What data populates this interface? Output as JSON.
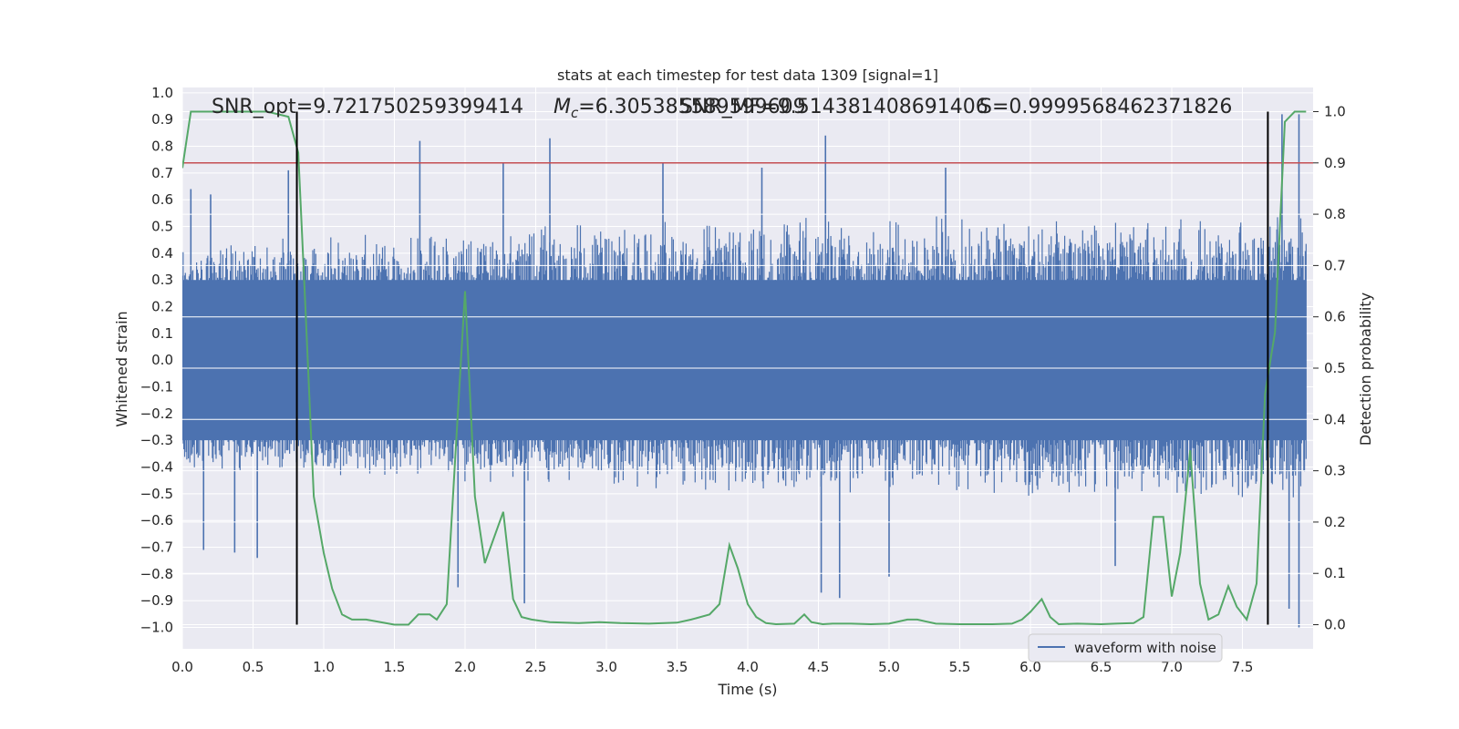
{
  "chart_data": {
    "type": "line",
    "title": "stats at each timestep for test data 1309 [signal=1]",
    "xlabel": "Time (s)",
    "ylabel": "Whitened strain",
    "y2label": "Detection probability",
    "xlim": [
      0.0,
      8.0
    ],
    "ylim": [
      -1.08,
      1.02
    ],
    "y2lim": [
      -0.047,
      1.047
    ],
    "xticks": [
      "0.0",
      "0.5",
      "1.0",
      "1.5",
      "2.0",
      "2.5",
      "3.0",
      "3.5",
      "4.0",
      "4.5",
      "5.0",
      "5.5",
      "6.0",
      "6.5",
      "7.0",
      "7.5"
    ],
    "yticks": [
      "1.0",
      "0.9",
      "0.8",
      "0.7",
      "0.6",
      "0.5",
      "0.4",
      "0.3",
      "0.2",
      "0.1",
      "0.0",
      "−0.1",
      "−0.2",
      "−0.3",
      "−0.4",
      "−0.5",
      "−0.6",
      "−0.7",
      "−0.8",
      "−0.9",
      "−1.0"
    ],
    "y2ticks": [
      "0.0",
      "0.1",
      "0.2",
      "0.3",
      "0.4",
      "0.5",
      "0.6",
      "0.7",
      "0.8",
      "0.9",
      "1.0"
    ],
    "annotations": {
      "snr_opt": "SNR_opt=9.721750259399414",
      "mc_prefix": "M",
      "mc_sub": "c",
      "mc_value": "=6.305385589599609",
      "snr_mf": "SNR_MF=9.514381408691406",
      "s_value": "S=0.9999568462371826"
    },
    "legend": {
      "label": "waveform with noise",
      "placement": "lower right"
    },
    "threshold": 0.9,
    "event_lines_x": [
      0.81,
      7.68
    ],
    "colors": {
      "waveform": "#4c72b0",
      "probability": "#55a868",
      "threshold": "#c44e52",
      "event": "#000000",
      "plot_bg": "#eaeaf2",
      "grid": "#ffffff"
    },
    "series": [
      {
        "name": "waveform with noise",
        "axis": "left",
        "envelope": {
          "x": [
            0.0,
            0.5,
            1.0,
            1.5,
            2.0,
            2.5,
            3.0,
            3.5,
            4.0,
            4.5,
            5.0,
            5.5,
            6.0,
            6.5,
            7.0,
            7.5,
            7.95
          ],
          "upper": [
            0.45,
            0.45,
            0.48,
            0.48,
            0.5,
            0.52,
            0.52,
            0.52,
            0.55,
            0.55,
            0.55,
            0.55,
            0.55,
            0.55,
            0.55,
            0.55,
            0.55
          ],
          "lower": [
            -0.43,
            -0.42,
            -0.45,
            -0.45,
            -0.47,
            -0.48,
            -0.5,
            -0.5,
            -0.5,
            -0.5,
            -0.5,
            -0.5,
            -0.52,
            -0.52,
            -0.52,
            -0.55,
            -0.55
          ]
        },
        "peaks": [
          {
            "x": 0.06,
            "y": 0.64
          },
          {
            "x": 0.2,
            "y": 0.62
          },
          {
            "x": 0.75,
            "y": 0.71
          },
          {
            "x": 1.68,
            "y": 0.82
          },
          {
            "x": 2.27,
            "y": 0.74
          },
          {
            "x": 2.6,
            "y": 0.83
          },
          {
            "x": 3.4,
            "y": 0.74
          },
          {
            "x": 4.1,
            "y": 0.72
          },
          {
            "x": 4.55,
            "y": 0.84
          },
          {
            "x": 5.4,
            "y": 0.72
          },
          {
            "x": 7.78,
            "y": 0.92
          },
          {
            "x": 7.9,
            "y": 0.92
          },
          {
            "x": 0.15,
            "y": -0.71
          },
          {
            "x": 0.37,
            "y": -0.72
          },
          {
            "x": 0.53,
            "y": -0.74
          },
          {
            "x": 1.95,
            "y": -0.85
          },
          {
            "x": 2.42,
            "y": -0.91
          },
          {
            "x": 4.52,
            "y": -0.87
          },
          {
            "x": 4.65,
            "y": -0.89
          },
          {
            "x": 5.0,
            "y": -0.81
          },
          {
            "x": 6.6,
            "y": -0.77
          },
          {
            "x": 7.83,
            "y": -0.93
          },
          {
            "x": 7.9,
            "y": -1.0
          }
        ]
      },
      {
        "name": "",
        "axis": "right",
        "x": [
          0.0,
          0.06,
          0.3,
          0.6,
          0.75,
          0.82,
          0.87,
          0.93,
          1.0,
          1.06,
          1.13,
          1.2,
          1.3,
          1.5,
          1.6,
          1.67,
          1.75,
          1.8,
          1.87,
          1.94,
          2.0,
          2.07,
          2.14,
          2.27,
          2.34,
          2.4,
          2.47,
          2.6,
          2.8,
          2.95,
          3.1,
          3.3,
          3.5,
          3.6,
          3.73,
          3.8,
          3.87,
          3.93,
          4.0,
          4.06,
          4.13,
          4.2,
          4.33,
          4.4,
          4.45,
          4.53,
          4.6,
          4.73,
          4.87,
          5.0,
          5.13,
          5.2,
          5.33,
          5.5,
          5.73,
          5.87,
          5.94,
          6.0,
          6.08,
          6.14,
          6.2,
          6.33,
          6.5,
          6.6,
          6.73,
          6.8,
          6.87,
          6.94,
          7.0,
          7.06,
          7.13,
          7.2,
          7.26,
          7.33,
          7.4,
          7.46,
          7.53,
          7.6,
          7.66,
          7.73,
          7.8,
          7.87,
          7.95
        ],
        "values": [
          0.89,
          1.0,
          1.0,
          1.0,
          0.99,
          0.92,
          0.62,
          0.25,
          0.14,
          0.07,
          0.02,
          0.01,
          0.01,
          0.0,
          0.0,
          0.02,
          0.02,
          0.01,
          0.04,
          0.37,
          0.65,
          0.25,
          0.12,
          0.22,
          0.05,
          0.015,
          0.01,
          0.005,
          0.003,
          0.005,
          0.003,
          0.002,
          0.004,
          0.01,
          0.02,
          0.04,
          0.155,
          0.11,
          0.04,
          0.015,
          0.003,
          0.001,
          0.002,
          0.02,
          0.005,
          0.001,
          0.002,
          0.002,
          0.001,
          0.002,
          0.01,
          0.01,
          0.002,
          0.001,
          0.001,
          0.002,
          0.01,
          0.025,
          0.05,
          0.015,
          0.001,
          0.002,
          0.001,
          0.002,
          0.003,
          0.015,
          0.21,
          0.21,
          0.055,
          0.14,
          0.34,
          0.08,
          0.01,
          0.02,
          0.075,
          0.035,
          0.01,
          0.08,
          0.45,
          0.57,
          0.98,
          1.0,
          1.0
        ]
      }
    ]
  }
}
